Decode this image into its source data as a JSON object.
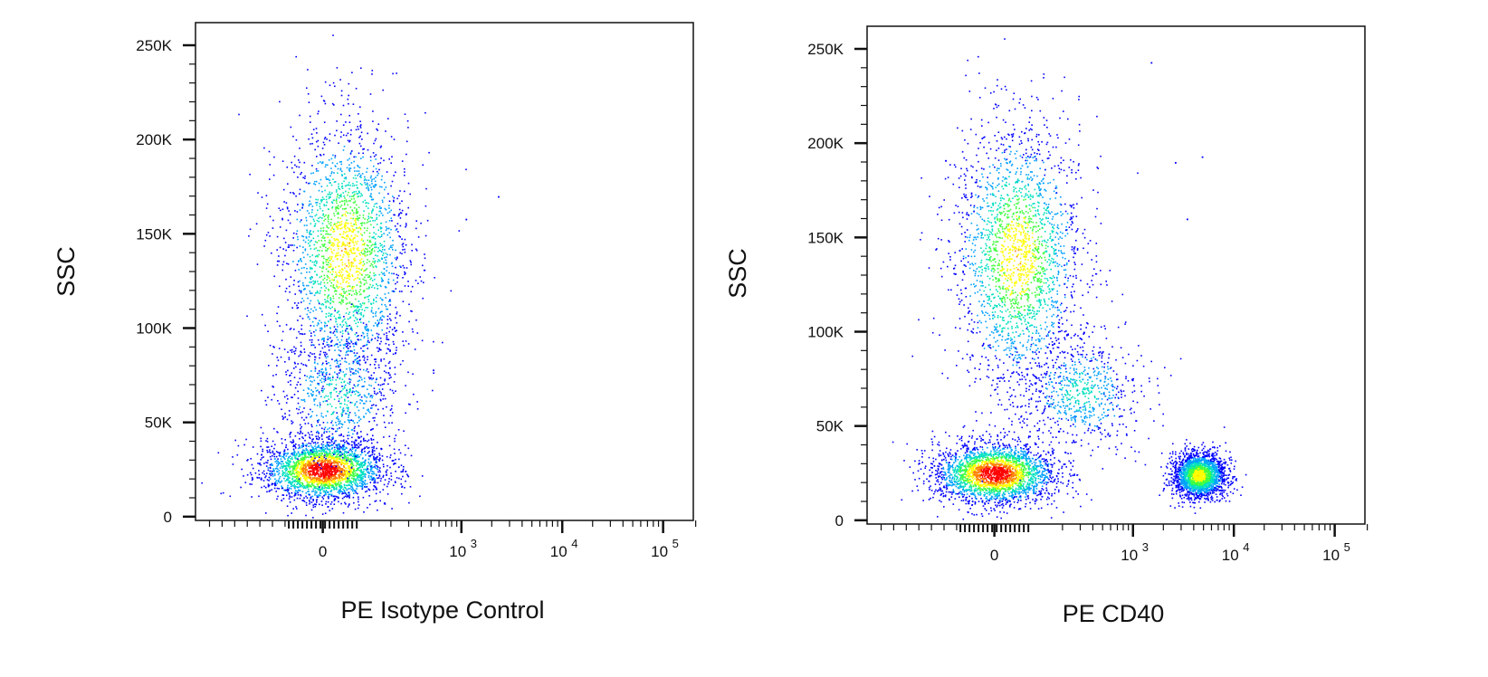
{
  "chart_data": [
    {
      "type": "scatter",
      "subtype": "flow-cytometry-density-dot-plot",
      "xlabel": "PE Isotype Control",
      "ylabel": "SSC",
      "x_scale": "biexponential",
      "x_ticks": [
        {
          "value": 0,
          "label": "0",
          "sup": ""
        },
        {
          "value": 1000,
          "label": "10",
          "sup": "3"
        },
        {
          "value": 10000,
          "label": "10",
          "sup": "4"
        },
        {
          "value": 100000,
          "label": "10",
          "sup": "5"
        }
      ],
      "y_ticks": [
        {
          "value": 0,
          "label": "0"
        },
        {
          "value": 50000,
          "label": "50K"
        },
        {
          "value": 100000,
          "label": "100K"
        },
        {
          "value": 150000,
          "label": "150K"
        },
        {
          "value": 200000,
          "label": "200K"
        },
        {
          "value": 250000,
          "label": "250K"
        }
      ],
      "ylim": [
        -2000,
        262000
      ],
      "grid": false,
      "populations": [
        {
          "name": "",
          "x_center": 0,
          "y_center": 25000,
          "y_spread": 8000,
          "density": "high"
        },
        {
          "name": "",
          "x_center": 60,
          "y_center": 140000,
          "y_spread": 35000,
          "density": "medium"
        },
        {
          "name": "",
          "x_center": 40,
          "y_center": 65000,
          "y_spread": 18000,
          "density": "low"
        }
      ],
      "outliers": [
        {
          "x": 1100,
          "y": 158000
        },
        {
          "x": 2300,
          "y": 170000
        },
        {
          "x": 520,
          "y": 78000
        }
      ]
    },
    {
      "type": "scatter",
      "subtype": "flow-cytometry-density-dot-plot",
      "xlabel": "PE CD40",
      "ylabel": "SSC",
      "x_scale": "biexponential",
      "x_ticks": [
        {
          "value": 0,
          "label": "0",
          "sup": ""
        },
        {
          "value": 1000,
          "label": "10",
          "sup": "3"
        },
        {
          "value": 10000,
          "label": "10",
          "sup": "4"
        },
        {
          "value": 100000,
          "label": "10",
          "sup": "5"
        }
      ],
      "y_ticks": [
        {
          "value": 0,
          "label": "0"
        },
        {
          "value": 50000,
          "label": "50K"
        },
        {
          "value": 100000,
          "label": "100K"
        },
        {
          "value": 150000,
          "label": "150K"
        },
        {
          "value": 200000,
          "label": "200K"
        },
        {
          "value": 250000,
          "label": "250K"
        }
      ],
      "ylim": [
        -2000,
        262000
      ],
      "grid": false,
      "populations": [
        {
          "name": "",
          "x_center": 0,
          "y_center": 25000,
          "y_spread": 8000,
          "density": "high"
        },
        {
          "name": "",
          "x_center": 60,
          "y_center": 140000,
          "y_spread": 35000,
          "density": "medium"
        },
        {
          "name": "",
          "x_center": 300,
          "y_center": 68000,
          "y_spread": 15000,
          "density": "low"
        },
        {
          "name": "",
          "x_center": 4500,
          "y_center": 24000,
          "y_spread": 6000,
          "density": "medium"
        }
      ],
      "outliers": [
        {
          "x": 1500,
          "y": 243000
        },
        {
          "x": 4800,
          "y": 193000
        },
        {
          "x": 2600,
          "y": 190000
        },
        {
          "x": 3400,
          "y": 160000
        }
      ]
    }
  ],
  "colormap": [
    "#0000ff",
    "#00a0ff",
    "#00e0c0",
    "#40ff40",
    "#ffff00",
    "#ff8000",
    "#ff0000"
  ]
}
